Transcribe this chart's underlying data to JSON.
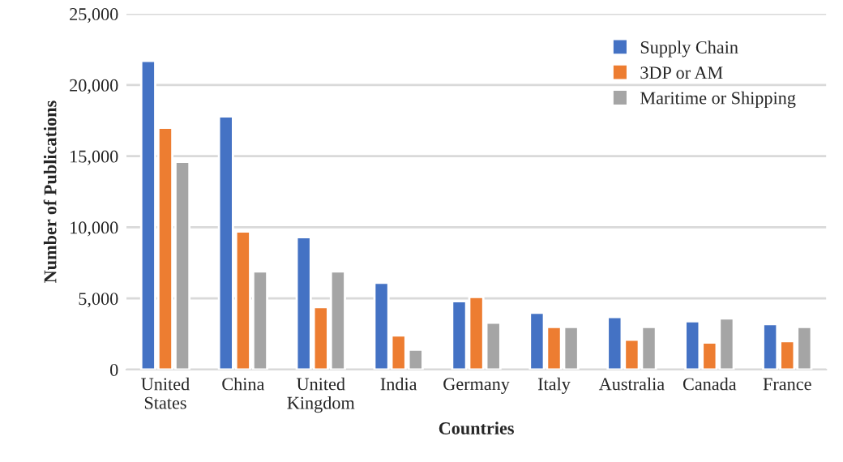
{
  "chart_data": {
    "type": "bar",
    "xlabel": "Countries",
    "ylabel": "Number of Publications",
    "categories": [
      "United\nStates",
      "China",
      "United\nKingdom",
      "India",
      "Germany",
      "Italy",
      "Australia",
      "Canada",
      "France"
    ],
    "series": [
      {
        "name": "Supply Chain",
        "color": "#4472c4",
        "values": [
          21700,
          17800,
          9300,
          6100,
          4800,
          4000,
          3700,
          3400,
          3200
        ]
      },
      {
        "name": "3DP or AM",
        "color": "#ed7d31",
        "values": [
          17000,
          9700,
          4400,
          2400,
          5100,
          3000,
          2100,
          1900,
          2000
        ]
      },
      {
        "name": "Maritime or Shipping",
        "color": "#a5a5a5",
        "values": [
          14600,
          6900,
          6900,
          1400,
          3300,
          3000,
          3000,
          3600,
          3000
        ]
      }
    ],
    "ylim": [
      0,
      25000
    ],
    "yticks": [
      {
        "value": 0,
        "label": "0"
      },
      {
        "value": 5000,
        "label": "5,000"
      },
      {
        "value": 10000,
        "label": "10,000"
      },
      {
        "value": 15000,
        "label": "15,000"
      },
      {
        "value": 20000,
        "label": "20,000"
      },
      {
        "value": 25000,
        "label": "25,000"
      }
    ],
    "grid": "y",
    "legend": "top right"
  }
}
